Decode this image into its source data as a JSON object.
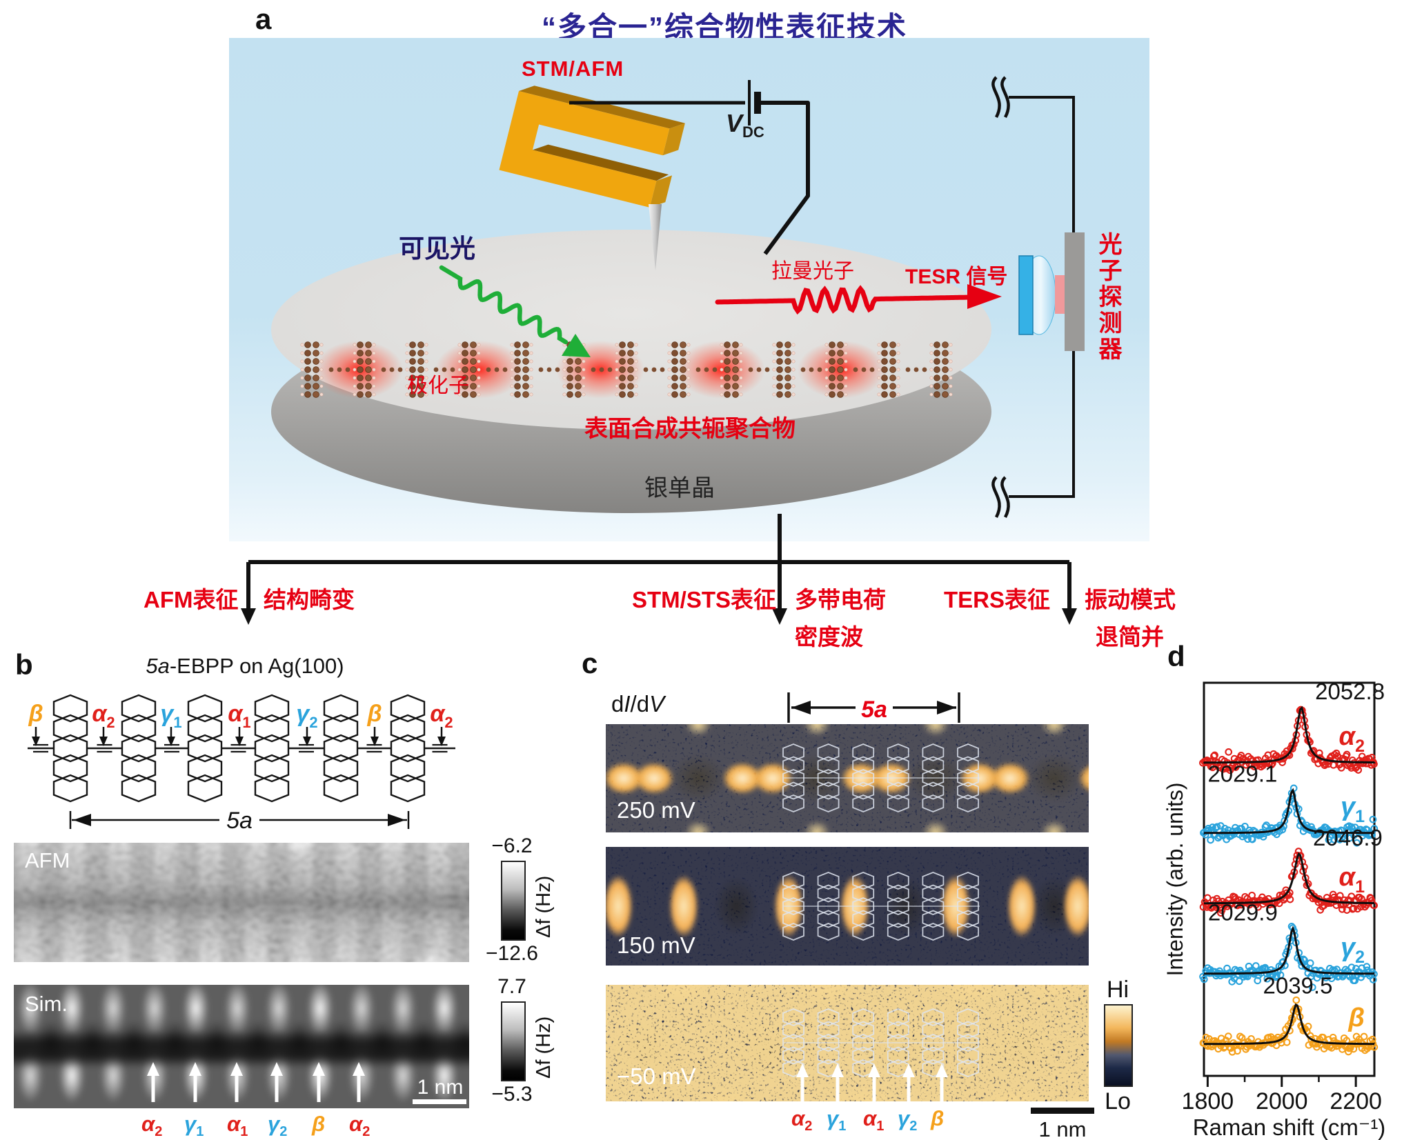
{
  "colors": {
    "label_red": "#e60012",
    "data_red": "#e0201b",
    "data_blue": "#2aa3dc",
    "data_orange": "#f5a01b",
    "title_navy": "#2a2492",
    "light_navy": "#1b1464",
    "green": "#1fae38",
    "panel_blue": "#c3e1f1"
  },
  "panel_a": {
    "label": "a",
    "title": "“多合一”综合物性表征技术",
    "stm_afm": "STM/AFM",
    "vdc": {
      "v": "V",
      "sub": "DC"
    },
    "visible_light": "可见光",
    "polaron": "极化子",
    "raman_photon": "拉曼光子",
    "tesr_signal": "TESR 信号",
    "photon_detector": "光子探测器",
    "polymer": "表面合成共轭聚合物",
    "substrate": "银单晶"
  },
  "flow": {
    "branches": [
      {
        "method": "AFM表征",
        "result_line1": "结构畸变",
        "result_line2": ""
      },
      {
        "method": "STM/STS表征",
        "result_line1": "多带电荷",
        "result_line2": "密度波"
      },
      {
        "method": "TERS表征",
        "result_line1": "振动模式",
        "result_line2": "退简并"
      }
    ]
  },
  "panel_b": {
    "label": "b",
    "title_italic": "5a",
    "title_rest": "-EBPP on Ag(100)",
    "bond_labels": [
      {
        "base": "β",
        "sub": "",
        "color": "#f5a01b"
      },
      {
        "base": "α",
        "sub": "2",
        "color": "#e0201b"
      },
      {
        "base": "γ",
        "sub": "1",
        "color": "#2aa3dc"
      },
      {
        "base": "α",
        "sub": "1",
        "color": "#e0201b"
      },
      {
        "base": "γ",
        "sub": "2",
        "color": "#2aa3dc"
      },
      {
        "base": "β",
        "sub": "",
        "color": "#f5a01b"
      },
      {
        "base": "α",
        "sub": "2",
        "color": "#e0201b"
      }
    ],
    "dimension": "5a",
    "afm_label": "AFM",
    "sim_label": "Sim.",
    "afm_scale": {
      "top": "−6.2",
      "bottom": "−12.6",
      "unit": "Δf (Hz)"
    },
    "sim_scale": {
      "top": "7.7",
      "bottom": "−5.3",
      "unit": "Δf (Hz)"
    },
    "scalebar": "1 nm",
    "arrow_labels": [
      {
        "base": "α",
        "sub": "2",
        "color": "#e0201b"
      },
      {
        "base": "γ",
        "sub": "1",
        "color": "#2aa3dc"
      },
      {
        "base": "α",
        "sub": "1",
        "color": "#e0201b"
      },
      {
        "base": "γ",
        "sub": "2",
        "color": "#2aa3dc"
      },
      {
        "base": "β",
        "sub": "",
        "color": "#f5a01b"
      },
      {
        "base": "α",
        "sub": "2",
        "color": "#e0201b"
      }
    ]
  },
  "panel_c": {
    "label": "c",
    "map_label_parts": [
      "d",
      "I",
      "/d",
      "V"
    ],
    "dimension": "5a",
    "voltages": [
      "250 mV",
      "150 mV",
      "−50 mV"
    ],
    "colorbar_hi": "Hi",
    "colorbar_lo": "Lo",
    "scalebar": "1 nm",
    "arrow_labels": [
      {
        "base": "α",
        "sub": "2",
        "color": "#e0201b"
      },
      {
        "base": "γ",
        "sub": "1",
        "color": "#2aa3dc"
      },
      {
        "base": "α",
        "sub": "1",
        "color": "#e0201b"
      },
      {
        "base": "γ",
        "sub": "2",
        "color": "#2aa3dc"
      },
      {
        "base": "β",
        "sub": "",
        "color": "#f5a01b"
      }
    ]
  },
  "panel_d": {
    "label": "d"
  },
  "chart_data": {
    "type": "line+scatter",
    "title": "",
    "xlabel": "Raman shift (cm⁻¹)",
    "ylabel": "Intensity (arb. units)",
    "xlim": [
      1790,
      2250
    ],
    "xticks": [
      1800,
      2000,
      2200
    ],
    "minor_xticks": [
      1900,
      2100
    ],
    "grid": false,
    "series": [
      {
        "name": "α2",
        "base": "α",
        "sub": "2",
        "color": "#e0201b",
        "peak": 2052.8,
        "peak_label": "2052.8",
        "amp": 1.0,
        "fwhm": 30,
        "label_side": "right"
      },
      {
        "name": "γ1",
        "base": "γ",
        "sub": "1",
        "color": "#2aa3dc",
        "peak": 2029.1,
        "peak_label": "2029.1",
        "amp": 0.78,
        "fwhm": 26,
        "label_side": "left"
      },
      {
        "name": "α1",
        "base": "α",
        "sub": "1",
        "color": "#e0201b",
        "peak": 2046.9,
        "peak_label": "2046.9",
        "amp": 0.9,
        "fwhm": 34,
        "label_side": "right"
      },
      {
        "name": "γ2",
        "base": "γ",
        "sub": "2",
        "color": "#2aa3dc",
        "peak": 2029.9,
        "peak_label": "2029.9",
        "amp": 0.82,
        "fwhm": 26,
        "label_side": "left"
      },
      {
        "name": "β",
        "base": "β",
        "sub": "",
        "color": "#f5a01b",
        "peak": 2039.5,
        "peak_label": "2039.5",
        "amp": 0.72,
        "fwhm": 30,
        "label_side": "center"
      }
    ]
  }
}
